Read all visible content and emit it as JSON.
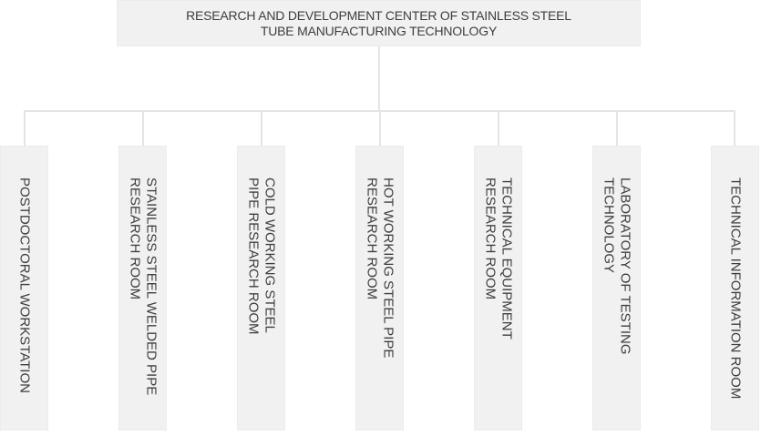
{
  "title": {
    "label": "RESEARCH AND DEVELOPMENT CENTER OF STAINLESS STEEL\nTUBE MANUFACTURING TECHNOLOGY"
  },
  "departments": [
    {
      "label": "POSTDOCTORAL WORKSTATION"
    },
    {
      "label": "STAINLESS STEEL WELDED PIPE\nRESEARCH ROOM"
    },
    {
      "label": "COLD WORKING STEEL\nPIPE RESEARCH ROOM"
    },
    {
      "label": "HOT WORKING STEEL PIPE\nRESEARCH ROOM"
    },
    {
      "label": "TECHNICAL EQUIPMENT\nRESEARCH ROOM"
    },
    {
      "label": "LABORATORY OF TESTING\nTECHNOLOGY"
    },
    {
      "label": "TECHNICAL INFORMATION ROOM"
    }
  ],
  "colors": {
    "background": "#ffffff",
    "node_fill": "#f1f1f1",
    "node_border": "#ececec",
    "connector": "#e4e4e4",
    "text": "#3d3d3d"
  }
}
